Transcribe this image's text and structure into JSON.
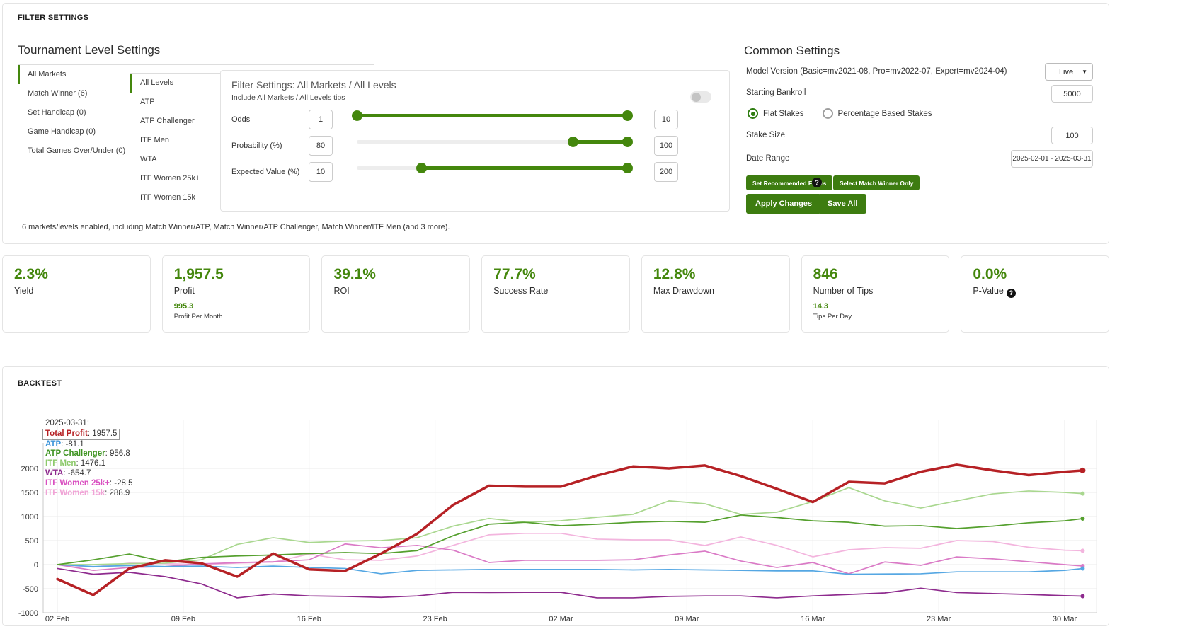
{
  "colors": {
    "accent": "#44870d",
    "button": "#3d7c10"
  },
  "filter_settings": {
    "title": "FILTER SETTINGS",
    "tournament": {
      "title": "Tournament Level Settings",
      "market_tabs": [
        {
          "label": "All Markets",
          "active": true
        },
        {
          "label": "Match Winner (6)",
          "active": false
        },
        {
          "label": "Set Handicap (0)",
          "active": false
        },
        {
          "label": "Game Handicap (0)",
          "active": false
        },
        {
          "label": "Total Games Over/Under (0)",
          "active": false
        }
      ],
      "level_tabs": [
        {
          "label": "All Levels",
          "active": true
        },
        {
          "label": "ATP",
          "active": false
        },
        {
          "label": "ATP Challenger",
          "active": false
        },
        {
          "label": "ITF Men",
          "active": false
        },
        {
          "label": "WTA",
          "active": false
        },
        {
          "label": "ITF Women 25k+",
          "active": false
        },
        {
          "label": "ITF Women 15k",
          "active": false
        }
      ],
      "panel": {
        "title": "Filter Settings: All Markets / All Levels",
        "subtitle": "Include All Markets / All Levels tips",
        "rows": [
          {
            "label": "Odds",
            "min": "1",
            "max": "10",
            "fill_start": 0,
            "fill_end": 100
          },
          {
            "label": "Probability (%)",
            "min": "80",
            "max": "100",
            "fill_start": 80,
            "fill_end": 100
          },
          {
            "label": "Expected Value (%)",
            "min": "10",
            "max": "200",
            "fill_start": 24,
            "fill_end": 100
          }
        ]
      },
      "summary": "6 markets/levels enabled, including Match Winner/ATP, Match Winner/ATP Challenger, Match Winner/ITF Men (and 3 more)."
    },
    "common": {
      "title": "Common Settings",
      "model_version_label": "Model Version (Basic=mv2021-08, Pro=mv2022-07, Expert=mv2024-04)",
      "model_version_value": "Live",
      "starting_bankroll_label": "Starting Bankroll",
      "starting_bankroll_value": "5000",
      "stake_radios": [
        {
          "label": "Flat Stakes",
          "selected": true
        },
        {
          "label": "Percentage Based Stakes",
          "selected": false
        }
      ],
      "stake_size_label": "Stake Size",
      "stake_size_value": "100",
      "date_range_label": "Date Range",
      "date_range_value": "2025-02-01 - 2025-03-31",
      "buttons": {
        "set_recommended": "Set Recommended Filters",
        "select_match_winner": "Select Match Winner Only",
        "apply": "Apply Changes",
        "save": "Save All"
      }
    }
  },
  "stats": [
    {
      "value": "2.3%",
      "label": "Yield"
    },
    {
      "value": "1,957.5",
      "label": "Profit",
      "sub_value": "995.3",
      "sub_label": "Profit Per Month"
    },
    {
      "value": "39.1%",
      "label": "ROI"
    },
    {
      "value": "77.7%",
      "label": "Success Rate"
    },
    {
      "value": "12.8%",
      "label": "Max Drawdown"
    },
    {
      "value": "846",
      "label": "Number of Tips",
      "sub_value": "14.3",
      "sub_label": "Tips Per Day"
    },
    {
      "value": "0.0%",
      "label": "P-Value",
      "has_help": true
    }
  ],
  "backtest": {
    "title": "BACKTEST"
  },
  "chart_data": {
    "type": "line",
    "title": "BACKTEST",
    "x_tick_days": [
      0,
      7,
      14,
      21,
      28,
      35,
      42,
      49,
      56
    ],
    "x_tick_labels": [
      "02 Feb",
      "09 Feb",
      "16 Feb",
      "23 Feb",
      "02 Mar",
      "09 Mar",
      "16 Mar",
      "23 Mar",
      "30 Mar"
    ],
    "y_ticks": [
      -1000,
      -500,
      0,
      500,
      1000,
      1500,
      2000
    ],
    "ylim": [
      -1100,
      2550
    ],
    "grid": true,
    "days": [
      0,
      2,
      4,
      6,
      8,
      10,
      12,
      14,
      16,
      18,
      20,
      22,
      24,
      26,
      28,
      30,
      32,
      34,
      36,
      38,
      40,
      42,
      44,
      46,
      48,
      50,
      52,
      54,
      56,
      57
    ],
    "tooltip": {
      "date": "2025-03-31:",
      "rows": [
        {
          "label": "Total Profit",
          "value": "1957.5",
          "boxed": true
        },
        {
          "label": "ATP",
          "value": "-81.1",
          "boxed": false
        },
        {
          "label": "ATP Challenger",
          "value": "956.8",
          "boxed": false
        },
        {
          "label": "ITF Men",
          "value": "1476.1",
          "boxed": false
        },
        {
          "label": "WTA",
          "value": "-654.7",
          "boxed": false
        },
        {
          "label": "ITF Women 25k+",
          "value": "-28.5",
          "boxed": false
        },
        {
          "label": "ITF Women 15k",
          "value": "288.9",
          "boxed": false
        }
      ]
    },
    "series": [
      {
        "name": "Total Profit",
        "color": "#b62125",
        "label_color": "#b62125",
        "width": 3.5,
        "values": [
          -300,
          -630,
          -80,
          90,
          30,
          -250,
          230,
          -100,
          -130,
          230,
          640,
          1240,
          1640,
          1620,
          1620,
          1850,
          2040,
          2000,
          2060,
          1840,
          1575,
          1300,
          1720,
          1690,
          1930,
          2075,
          1960,
          1860,
          1930,
          1957.5
        ]
      },
      {
        "name": "ATP",
        "color": "#55a7e3",
        "label_color": "#3d95da",
        "width": 1.7,
        "values": [
          0,
          -40,
          -20,
          -40,
          -30,
          -60,
          -30,
          -60,
          -80,
          -190,
          -120,
          -110,
          -100,
          -100,
          -100,
          -100,
          -110,
          -100,
          -110,
          -120,
          -130,
          -130,
          -200,
          -195,
          -190,
          -150,
          -150,
          -150,
          -120,
          -81.1
        ]
      },
      {
        "name": "ATP Challenger",
        "color": "#55a02e",
        "label_color": "#3f9422",
        "width": 1.7,
        "values": [
          0,
          100,
          220,
          60,
          150,
          180,
          200,
          230,
          250,
          230,
          290,
          600,
          840,
          880,
          810,
          840,
          880,
          900,
          880,
          1030,
          980,
          910,
          880,
          800,
          810,
          750,
          800,
          870,
          910,
          956.8
        ]
      },
      {
        "name": "ITF Men",
        "color": "#a9d78f",
        "label_color": "#8cc96a",
        "width": 1.7,
        "values": [
          0,
          0,
          20,
          30,
          100,
          420,
          560,
          460,
          490,
          500,
          560,
          800,
          960,
          880,
          912,
          985,
          1045,
          1325,
          1265,
          1045,
          1090,
          1310,
          1600,
          1325,
          1175,
          1325,
          1470,
          1530,
          1500,
          1476.1
        ]
      },
      {
        "name": "WTA",
        "color": "#a express05ca0",
        "label_color": "#8e2b8e",
        "width": 1.7,
        "values": [
          -80,
          -200,
          -160,
          -250,
          -400,
          -690,
          -610,
          -650,
          -660,
          -680,
          -650,
          -575,
          -580,
          -575,
          -575,
          -690,
          -690,
          -660,
          -650,
          -650,
          -690,
          -650,
          -620,
          -588,
          -490,
          -580,
          -600,
          -620,
          -645,
          -654.7
        ]
      },
      {
        "name": "ITF Women 25k+",
        "color": "#da7ac6",
        "label_color": "#d94fc0",
        "width": 1.7,
        "values": [
          0,
          -120,
          -60,
          -40,
          15,
          40,
          60,
          100,
          430,
          350,
          400,
          300,
          44,
          90,
          90,
          90,
          100,
          200,
          280,
          74,
          -60,
          44,
          -190,
          55,
          -15,
          160,
          120,
          60,
          0,
          -28.5
        ]
      },
      {
        "name": "ITF Women 15k",
        "color": "#f3b5de",
        "label_color": "#f0a3d6",
        "width": 1.7,
        "values": [
          0,
          -50,
          30,
          20,
          0,
          30,
          50,
          220,
          100,
          90,
          180,
          400,
          620,
          650,
          650,
          530,
          515,
          515,
          397,
          574,
          400,
          162,
          309,
          353,
          340,
          500,
          480,
          360,
          300,
          288.9
        ]
      }
    ],
    "draw_order": [
      6,
      5,
      4,
      1,
      3,
      2,
      0
    ]
  }
}
